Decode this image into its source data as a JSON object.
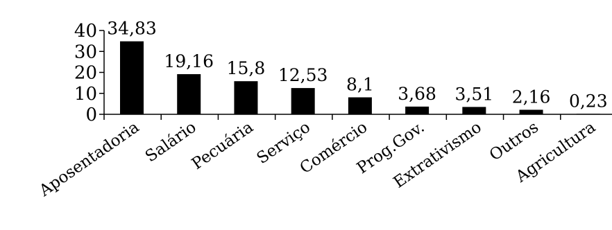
{
  "chart_data": {
    "type": "bar",
    "title": "",
    "xlabel": "",
    "ylabel": "",
    "categories": [
      "Aposentadoria",
      "Salário",
      "Pecuária",
      "Serviço",
      "Comércio",
      "Prog.Gov.",
      "Extrativismo",
      "Outros",
      "Agricultura"
    ],
    "values": [
      34.83,
      19.16,
      15.8,
      12.53,
      8.1,
      3.68,
      3.51,
      2.16,
      0.23
    ],
    "value_labels": [
      "34,83",
      "19,16",
      "15,8",
      "12,53",
      "8,1",
      "3,68",
      "3,51",
      "2,16",
      "0,23"
    ],
    "ylim": [
      0,
      40
    ],
    "yticks": [
      0,
      10,
      20,
      30,
      40
    ],
    "ytick_labels": [
      "0",
      "10",
      "20",
      "30",
      "40"
    ],
    "grid": false,
    "bar_color": "#000000"
  }
}
